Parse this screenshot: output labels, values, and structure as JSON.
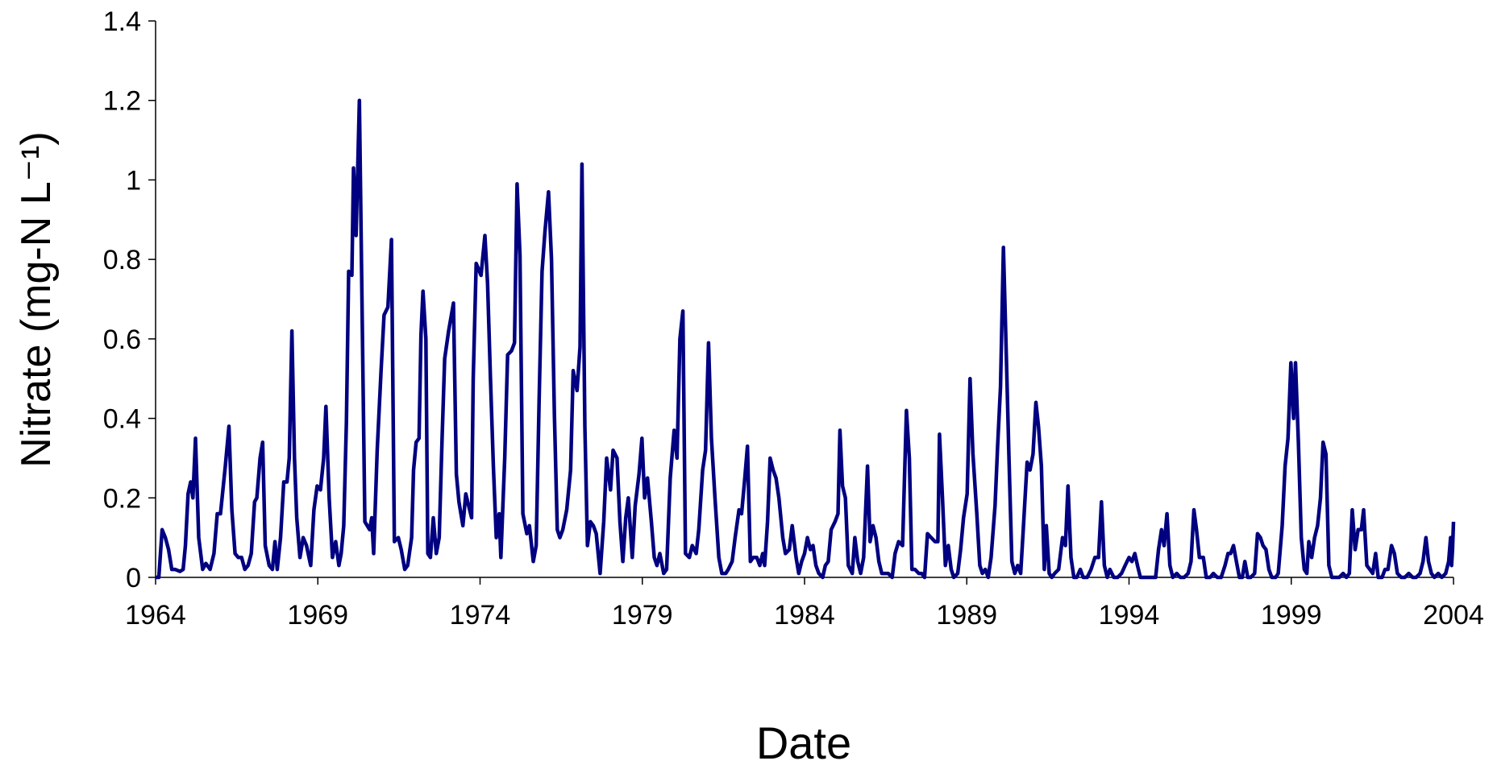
{
  "chart_data": {
    "type": "line",
    "x_label": "Date",
    "y_label": "Nitrate (mg-N L⁻¹)",
    "color": "#000080",
    "xlim": [
      1964,
      2004
    ],
    "xticks": [
      1964,
      1969,
      1974,
      1979,
      1984,
      1989,
      1994,
      1999,
      2004
    ],
    "ylim": [
      0,
      1.4
    ],
    "yticks": [
      0,
      0.2,
      0.4,
      0.6,
      0.8,
      1,
      1.2,
      1.4
    ],
    "x": [
      1964.0,
      1964.1,
      1964.2,
      1964.3,
      1964.4,
      1964.5,
      1964.6,
      1964.75,
      1964.85,
      1964.92,
      1965.0,
      1965.08,
      1965.15,
      1965.23,
      1965.33,
      1965.45,
      1965.55,
      1965.68,
      1965.8,
      1965.9,
      1966.0,
      1966.15,
      1966.26,
      1966.35,
      1966.45,
      1966.55,
      1966.65,
      1966.75,
      1966.85,
      1966.95,
      1967.05,
      1967.12,
      1967.22,
      1967.3,
      1967.38,
      1967.5,
      1967.6,
      1967.68,
      1967.75,
      1967.85,
      1967.95,
      1968.05,
      1968.12,
      1968.2,
      1968.28,
      1968.35,
      1968.45,
      1968.55,
      1968.65,
      1968.78,
      1968.88,
      1968.98,
      1969.08,
      1969.18,
      1969.25,
      1969.35,
      1969.45,
      1969.55,
      1969.65,
      1969.72,
      1969.8,
      1969.88,
      1969.95,
      1970.05,
      1970.1,
      1970.18,
      1970.28,
      1970.36,
      1970.45,
      1970.6,
      1970.66,
      1970.72,
      1970.83,
      1970.95,
      1971.04,
      1971.16,
      1971.27,
      1971.36,
      1971.48,
      1971.57,
      1971.68,
      1971.77,
      1971.89,
      1971.95,
      1972.03,
      1972.12,
      1972.18,
      1972.24,
      1972.33,
      1972.39,
      1972.47,
      1972.56,
      1972.65,
      1972.74,
      1972.83,
      1972.91,
      1973.03,
      1973.18,
      1973.27,
      1973.35,
      1973.47,
      1973.56,
      1973.65,
      1973.74,
      1973.79,
      1973.88,
      1974.03,
      1974.15,
      1974.23,
      1974.32,
      1974.41,
      1974.5,
      1974.59,
      1974.64,
      1974.76,
      1974.85,
      1974.97,
      1975.06,
      1975.14,
      1975.23,
      1975.32,
      1975.44,
      1975.52,
      1975.64,
      1975.73,
      1975.82,
      1975.91,
      1976.0,
      1976.11,
      1976.2,
      1976.29,
      1976.38,
      1976.46,
      1976.55,
      1976.67,
      1976.79,
      1976.87,
      1976.99,
      1977.08,
      1977.14,
      1977.23,
      1977.31,
      1977.4,
      1977.49,
      1977.58,
      1977.7,
      1977.81,
      1977.9,
      1978.02,
      1978.1,
      1978.22,
      1978.31,
      1978.4,
      1978.49,
      1978.57,
      1978.69,
      1978.78,
      1978.9,
      1978.99,
      1979.07,
      1979.16,
      1979.28,
      1979.37,
      1979.45,
      1979.54,
      1979.66,
      1979.75,
      1979.86,
      1979.98,
      1980.07,
      1980.16,
      1980.25,
      1980.33,
      1980.45,
      1980.54,
      1980.66,
      1980.74,
      1980.86,
      1980.95,
      1981.04,
      1981.13,
      1981.24,
      1981.36,
      1981.45,
      1981.57,
      1981.65,
      1981.77,
      1981.86,
      1981.98,
      1982.06,
      1982.15,
      1982.24,
      1982.33,
      1982.42,
      1982.53,
      1982.62,
      1982.71,
      1982.77,
      1982.86,
      1982.94,
      1983.03,
      1983.12,
      1983.21,
      1983.33,
      1983.41,
      1983.53,
      1983.62,
      1983.74,
      1983.82,
      1983.91,
      1984.0,
      1984.09,
      1984.18,
      1984.26,
      1984.35,
      1984.44,
      1984.56,
      1984.64,
      1984.73,
      1984.82,
      1984.94,
      1985.03,
      1985.09,
      1985.17,
      1985.26,
      1985.35,
      1985.47,
      1985.55,
      1985.64,
      1985.73,
      1985.82,
      1985.94,
      1986.02,
      1986.11,
      1986.2,
      1986.29,
      1986.38,
      1986.49,
      1986.58,
      1986.7,
      1986.79,
      1986.9,
      1987.02,
      1987.14,
      1987.23,
      1987.31,
      1987.4,
      1987.52,
      1987.61,
      1987.7,
      1987.79,
      1987.9,
      1988.02,
      1988.11,
      1988.16,
      1988.25,
      1988.34,
      1988.43,
      1988.52,
      1988.6,
      1988.72,
      1988.81,
      1988.9,
      1989.01,
      1989.1,
      1989.19,
      1989.31,
      1989.4,
      1989.48,
      1989.57,
      1989.66,
      1989.75,
      1989.87,
      1989.95,
      1990.04,
      1990.13,
      1990.22,
      1990.3,
      1990.39,
      1990.48,
      1990.57,
      1990.66,
      1990.74,
      1990.86,
      1990.95,
      1991.04,
      1991.13,
      1991.21,
      1991.3,
      1991.39,
      1991.45,
      1991.54,
      1991.62,
      1991.71,
      1991.83,
      1991.95,
      1992.04,
      1992.12,
      1992.21,
      1992.3,
      1992.39,
      1992.5,
      1992.59,
      1992.71,
      1992.83,
      1992.95,
      1993.06,
      1993.15,
      1993.24,
      1993.33,
      1993.41,
      1993.53,
      1993.65,
      1993.77,
      1993.88,
      1994.0,
      1994.09,
      1994.18,
      1994.26,
      1994.35,
      1994.47,
      1994.59,
      1994.7,
      1994.82,
      1994.91,
      1995.0,
      1995.08,
      1995.17,
      1995.26,
      1995.35,
      1995.47,
      1995.58,
      1995.7,
      1995.82,
      1995.91,
      1996.0,
      1996.08,
      1996.17,
      1996.29,
      1996.38,
      1996.5,
      1996.6,
      1996.72,
      1996.84,
      1996.96,
      1997.05,
      1997.13,
      1997.22,
      1997.31,
      1997.4,
      1997.49,
      1997.57,
      1997.66,
      1997.75,
      1997.87,
      1997.96,
      1998.05,
      1998.13,
      1998.22,
      1998.31,
      1998.4,
      1998.52,
      1998.6,
      1998.72,
      1998.81,
      1998.9,
      1998.99,
      1999.07,
      1999.13,
      1999.22,
      1999.31,
      1999.4,
      1999.48,
      1999.54,
      1999.63,
      1999.72,
      1999.81,
      1999.9,
      1999.98,
      2000.07,
      2000.16,
      2000.25,
      2000.36,
      2000.48,
      2000.6,
      2000.7,
      2000.79,
      2000.88,
      2000.97,
      2001.06,
      2001.16,
      2001.23,
      2001.33,
      2001.42,
      2001.51,
      2001.6,
      2001.68,
      2001.8,
      2001.89,
      2001.98,
      2002.09,
      2002.18,
      2002.27,
      2002.39,
      2002.5,
      2002.62,
      2002.74,
      2002.85,
      2002.97,
      2003.06,
      2003.15,
      2003.23,
      2003.32,
      2003.41,
      2003.53,
      2003.64,
      2003.76,
      2003.85,
      2003.91,
      2003.94,
      2003.97,
      2004.0
    ],
    "values": [
      0,
      0,
      0.12,
      0.1,
      0.07,
      0.02,
      0.02,
      0.015,
      0.02,
      0.08,
      0.21,
      0.24,
      0.2,
      0.35,
      0.1,
      0.02,
      0.035,
      0.02,
      0.06,
      0.16,
      0.16,
      0.28,
      0.38,
      0.17,
      0.06,
      0.05,
      0.05,
      0.02,
      0.03,
      0.06,
      0.19,
      0.2,
      0.3,
      0.34,
      0.08,
      0.03,
      0.02,
      0.09,
      0.02,
      0.1,
      0.24,
      0.24,
      0.3,
      0.62,
      0.3,
      0.15,
      0.05,
      0.1,
      0.08,
      0.03,
      0.17,
      0.23,
      0.22,
      0.3,
      0.43,
      0.2,
      0.05,
      0.09,
      0.03,
      0.06,
      0.13,
      0.39,
      0.77,
      0.76,
      1.03,
      0.86,
      1.2,
      0.7,
      0.14,
      0.12,
      0.15,
      0.06,
      0.32,
      0.52,
      0.66,
      0.68,
      0.85,
      0.09,
      0.1,
      0.07,
      0.02,
      0.03,
      0.1,
      0.27,
      0.34,
      0.35,
      0.61,
      0.72,
      0.6,
      0.06,
      0.05,
      0.15,
      0.06,
      0.1,
      0.35,
      0.55,
      0.62,
      0.69,
      0.26,
      0.19,
      0.13,
      0.21,
      0.18,
      0.15,
      0.5,
      0.79,
      0.76,
      0.86,
      0.74,
      0.5,
      0.28,
      0.1,
      0.16,
      0.05,
      0.3,
      0.56,
      0.57,
      0.59,
      0.99,
      0.81,
      0.16,
      0.11,
      0.13,
      0.04,
      0.08,
      0.45,
      0.77,
      0.87,
      0.97,
      0.8,
      0.41,
      0.12,
      0.1,
      0.12,
      0.17,
      0.27,
      0.52,
      0.47,
      0.58,
      1.04,
      0.38,
      0.08,
      0.14,
      0.13,
      0.11,
      0.01,
      0.14,
      0.3,
      0.22,
      0.32,
      0.3,
      0.14,
      0.04,
      0.15,
      0.2,
      0.05,
      0.18,
      0.26,
      0.35,
      0.2,
      0.25,
      0.14,
      0.05,
      0.03,
      0.06,
      0.01,
      0.02,
      0.25,
      0.37,
      0.3,
      0.6,
      0.67,
      0.06,
      0.05,
      0.08,
      0.06,
      0.12,
      0.27,
      0.32,
      0.59,
      0.35,
      0.2,
      0.05,
      0.01,
      0.01,
      0.02,
      0.04,
      0.1,
      0.17,
      0.16,
      0.24,
      0.33,
      0.04,
      0.05,
      0.05,
      0.03,
      0.06,
      0.03,
      0.14,
      0.3,
      0.27,
      0.25,
      0.2,
      0.1,
      0.06,
      0.07,
      0.13,
      0.05,
      0.01,
      0.04,
      0.06,
      0.1,
      0.07,
      0.08,
      0.03,
      0.01,
      0,
      0.03,
      0.04,
      0.12,
      0.14,
      0.16,
      0.37,
      0.23,
      0.2,
      0.03,
      0.01,
      0.1,
      0.04,
      0.01,
      0.05,
      0.28,
      0.09,
      0.13,
      0.1,
      0.04,
      0.01,
      0.01,
      0.01,
      0,
      0.06,
      0.09,
      0.08,
      0.42,
      0.3,
      0.02,
      0.02,
      0.01,
      0.01,
      0,
      0.11,
      0.1,
      0.09,
      0.09,
      0.36,
      0.2,
      0.03,
      0.08,
      0.02,
      0,
      0.01,
      0.07,
      0.15,
      0.21,
      0.5,
      0.31,
      0.16,
      0.03,
      0.01,
      0.02,
      0,
      0.05,
      0.18,
      0.33,
      0.48,
      0.83,
      0.55,
      0.3,
      0.04,
      0.01,
      0.03,
      0.01,
      0.12,
      0.29,
      0.27,
      0.31,
      0.44,
      0.38,
      0.28,
      0.02,
      0.13,
      0.01,
      0,
      0.01,
      0.02,
      0.1,
      0.08,
      0.23,
      0.05,
      0,
      0,
      0.02,
      0,
      0,
      0.02,
      0.05,
      0.05,
      0.19,
      0.03,
      0,
      0.02,
      0,
      0,
      0.01,
      0.03,
      0.05,
      0.04,
      0.06,
      0.03,
      0,
      0,
      0,
      0,
      0,
      0.07,
      0.12,
      0.08,
      0.16,
      0.03,
      0,
      0.01,
      0,
      0,
      0.01,
      0.04,
      0.17,
      0.12,
      0.05,
      0.05,
      0,
      0,
      0.01,
      0,
      0,
      0.03,
      0.06,
      0.06,
      0.08,
      0.04,
      0,
      0,
      0.04,
      0,
      0,
      0.01,
      0.11,
      0.1,
      0.08,
      0.07,
      0.02,
      0,
      0,
      0.01,
      0.13,
      0.28,
      0.35,
      0.54,
      0.4,
      0.54,
      0.34,
      0.1,
      0.02,
      0.01,
      0.09,
      0.05,
      0.1,
      0.13,
      0.2,
      0.34,
      0.31,
      0.03,
      0,
      0,
      0,
      0.01,
      0,
      0.01,
      0.17,
      0.07,
      0.12,
      0.12,
      0.17,
      0.03,
      0.02,
      0.01,
      0.06,
      0,
      0,
      0.02,
      0.02,
      0.08,
      0.06,
      0.01,
      0,
      0,
      0.01,
      0,
      0,
      0.01,
      0.04,
      0.1,
      0.04,
      0.01,
      0,
      0.01,
      0,
      0.01,
      0.04,
      0.1,
      0.03,
      0.07,
      0.14
    ]
  }
}
